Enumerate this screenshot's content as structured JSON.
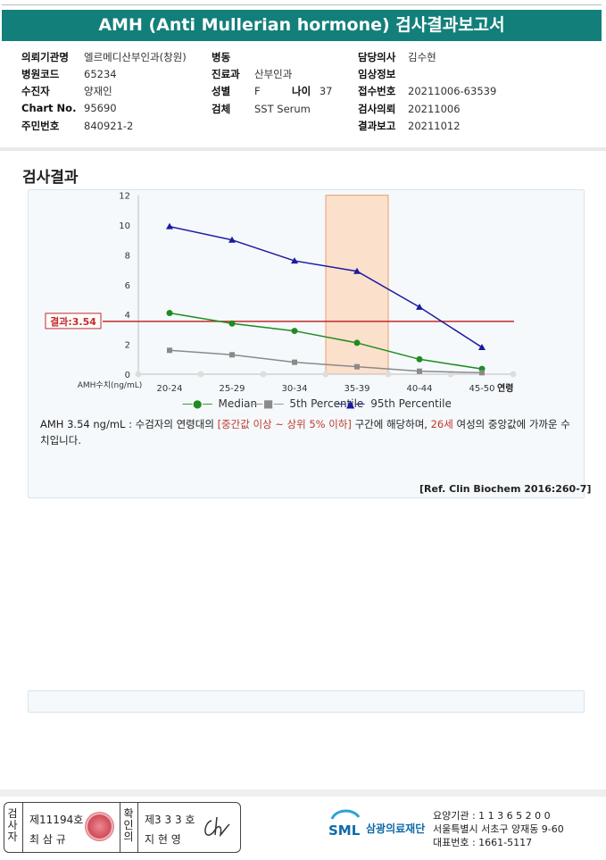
{
  "title": "AMH (Anti Mullerian hormone) 검사결과보고서",
  "patient": {
    "col1": [
      {
        "label": "의뢰기관명",
        "value": "엘르메디산부인과(창원)"
      },
      {
        "label": "병원코드",
        "value": "65234"
      },
      {
        "label": "수진자",
        "value": "양재인"
      },
      {
        "label": "Chart No.",
        "value": "95690"
      },
      {
        "label": "주민번호",
        "value": "840921-2"
      }
    ],
    "col2": [
      {
        "label": "병동",
        "value": ""
      },
      {
        "label": "진료과",
        "value": "산부인과"
      },
      {
        "label": "성별",
        "value": "F"
      },
      {
        "label": "검체",
        "value": "SST Serum"
      }
    ],
    "age_label": "나이",
    "age_value": "37",
    "col3": [
      {
        "label": "담당의사",
        "value": "김수현"
      },
      {
        "label": "임상정보",
        "value": ""
      },
      {
        "label": "접수번호",
        "value": "20211006-63539"
      },
      {
        "label": "검사의뢰",
        "value": "20211006"
      },
      {
        "label": "결과보고",
        "value": "20211012"
      }
    ]
  },
  "section_title": "검사결과",
  "chart_data": {
    "type": "line",
    "categories": [
      "20-24",
      "25-29",
      "30-34",
      "35-39",
      "40-44",
      "45-50"
    ],
    "x_axis_suffix": "연령",
    "y_axis_label": "AMH수치(ng/mL)",
    "ylim": [
      0,
      12
    ],
    "yticks": [
      0,
      2,
      4,
      6,
      8,
      10,
      12
    ],
    "highlight_category": "35-39",
    "reference_line": {
      "value": 3.54,
      "label": "결과:3.54",
      "color": "#c62828"
    },
    "series": [
      {
        "name": "Median",
        "color": "#1e8c1e",
        "marker": "circle",
        "values": [
          4.1,
          3.4,
          2.9,
          2.1,
          1.0,
          0.35
        ]
      },
      {
        "name": "5th Percentile",
        "color": "#8a8a8a",
        "marker": "square",
        "values": [
          1.6,
          1.3,
          0.8,
          0.5,
          0.2,
          0.1
        ]
      },
      {
        "name": "95th Percentile",
        "color": "#1a1aa0",
        "marker": "triangle",
        "values": [
          9.9,
          9.0,
          7.6,
          6.9,
          4.5,
          1.8
        ]
      }
    ]
  },
  "description": {
    "part1": "AMH  3.54 ng/mL : 수검자의 연령대의 ",
    "highlight1": "[중간값 이상 ~ 상위 5% 이하]",
    "part2": " 구간에 해당하며, ",
    "highlight2": "26세",
    "part3": " 여성의 중앙값에 가까운 수치입니다."
  },
  "reference": "[Ref. Clin Biochem 2016:260-7]",
  "footer": {
    "examiner_label": "검사자",
    "examiner_no": "제11194호",
    "examiner_name": "최 삼 규",
    "confirm_label": "확인의",
    "confirm_no": "제3 3 3 호",
    "confirm_name": "지 현 영",
    "org_logo": "SML",
    "org_name": "삼광의료재단",
    "org_code": "요양기관 : 1 1 3 6 5 2 0 0",
    "org_address": "서울특별시 서초구 양재동 9-60",
    "org_phone": "대표번호 : 1661-5117",
    "colors": {
      "accent": "#137f7a",
      "logo": "#0f6aa8"
    }
  }
}
